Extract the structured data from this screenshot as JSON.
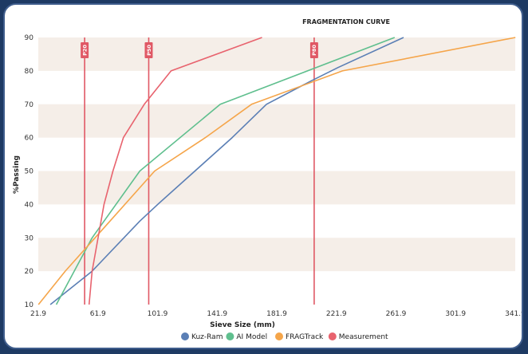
{
  "chart_data": {
    "type": "line",
    "title": "FRAGMENTATION CURVE",
    "xlabel": "Sieve Size (mm)",
    "ylabel": "%Passing",
    "xlim": [
      21.9,
      341.9
    ],
    "ylim": [
      10,
      90
    ],
    "x_ticks": [
      "21.9",
      "61.9",
      "101.9",
      "141.9",
      "181.9",
      "221.9",
      "261.9",
      "301.9",
      "341.9"
    ],
    "y_ticks": [
      "10",
      "20",
      "30",
      "40",
      "50",
      "60",
      "70",
      "80",
      "90"
    ],
    "series": [
      {
        "name": "Kuz-Ram",
        "color": "#5b7fb5",
        "points": [
          [
            30,
            10
          ],
          [
            58,
            20
          ],
          [
            90,
            35
          ],
          [
            102,
            40
          ],
          [
            152,
            60
          ],
          [
            175,
            70
          ],
          [
            205,
            77
          ],
          [
            223,
            81
          ],
          [
            267,
            90
          ]
        ]
      },
      {
        "name": "AI Model",
        "color": "#5fbf8e",
        "points": [
          [
            34,
            10
          ],
          [
            58,
            30
          ],
          [
            90,
            50
          ],
          [
            144,
            70
          ],
          [
            261,
            90
          ]
        ]
      },
      {
        "name": "FRAGTrack",
        "color": "#f5a54a",
        "points": [
          [
            22,
            10
          ],
          [
            40,
            20
          ],
          [
            70,
            35
          ],
          [
            100,
            50
          ],
          [
            134,
            60
          ],
          [
            165,
            70
          ],
          [
            226,
            80
          ],
          [
            342,
            90
          ]
        ]
      },
      {
        "name": "Measurement",
        "color": "#e8636e",
        "points": [
          [
            56,
            10
          ],
          [
            58,
            20
          ],
          [
            66,
            40
          ],
          [
            72,
            50
          ],
          [
            79,
            60
          ],
          [
            93,
            70
          ],
          [
            111,
            80
          ],
          [
            172,
            90
          ]
        ]
      }
    ],
    "vlines": [
      {
        "label": "P20",
        "x": 53
      },
      {
        "label": "P50",
        "x": 96
      },
      {
        "label": "P80",
        "x": 207
      }
    ],
    "vline_color": "#e05865",
    "band_color": "#f5eee8",
    "grid": false,
    "legend_position": "bottom"
  }
}
